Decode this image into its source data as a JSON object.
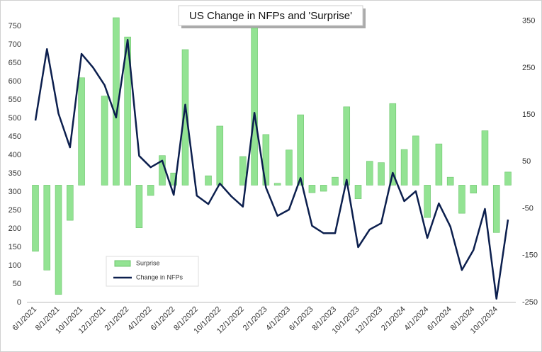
{
  "chart_data": {
    "type": "bar-line",
    "title": "US Change in NFPs and 'Surprise'",
    "categories": [
      "6/1/2021",
      null,
      "8/1/2021",
      null,
      "10/1/2021",
      null,
      "12/1/2021",
      null,
      "2/1/2022",
      null,
      "4/1/2022",
      null,
      "6/1/2022",
      null,
      "8/1/2022",
      null,
      "10/1/2022",
      null,
      "12/1/2022",
      null,
      "2/1/2023",
      null,
      "4/1/2023",
      null,
      "6/1/2023",
      null,
      "8/1/2023",
      null,
      "10/1/2023",
      null,
      "12/1/2023",
      null,
      "2/1/2024",
      null,
      "4/1/2024",
      null,
      "6/1/2024",
      null,
      "8/1/2024",
      null,
      "10/1/2024",
      null
    ],
    "series": [
      {
        "name": "Surprise",
        "type": "bar",
        "axis": "y2",
        "color": "#93e393",
        "values": [
          -141,
          -181,
          -233,
          -75,
          229,
          0,
          190,
          357,
          316,
          -91,
          -22,
          63,
          26,
          289,
          0,
          20,
          126,
          0,
          61,
          335,
          108,
          4,
          75,
          150,
          -16,
          -13,
          17,
          167,
          -29,
          51,
          48,
          174,
          76,
          105,
          -69,
          88,
          17,
          -60,
          -17,
          116,
          -101,
          28
        ]
      },
      {
        "name": "Change in NFPs",
        "type": "line",
        "color": "#0c1f4e",
        "values": [
          494,
          688,
          513,
          421,
          675,
          638,
          590,
          502,
          713,
          398,
          367,
          385,
          292,
          537,
          290,
          267,
          323,
          288,
          260,
          515,
          312,
          235,
          252,
          338,
          208,
          188,
          188,
          333,
          150,
          198,
          215,
          352,
          275,
          302,
          175,
          269,
          206,
          88,
          142,
          254,
          10,
          225
        ]
      }
    ],
    "ylim": [
      0,
      777
    ],
    "yticks": [
      0,
      50,
      100,
      150,
      200,
      250,
      300,
      350,
      400,
      450,
      500,
      550,
      600,
      650,
      700,
      750
    ],
    "y2lim": [
      -250,
      360
    ],
    "y2ticks": [
      -250,
      -150,
      -50,
      50,
      150,
      250,
      350
    ]
  }
}
